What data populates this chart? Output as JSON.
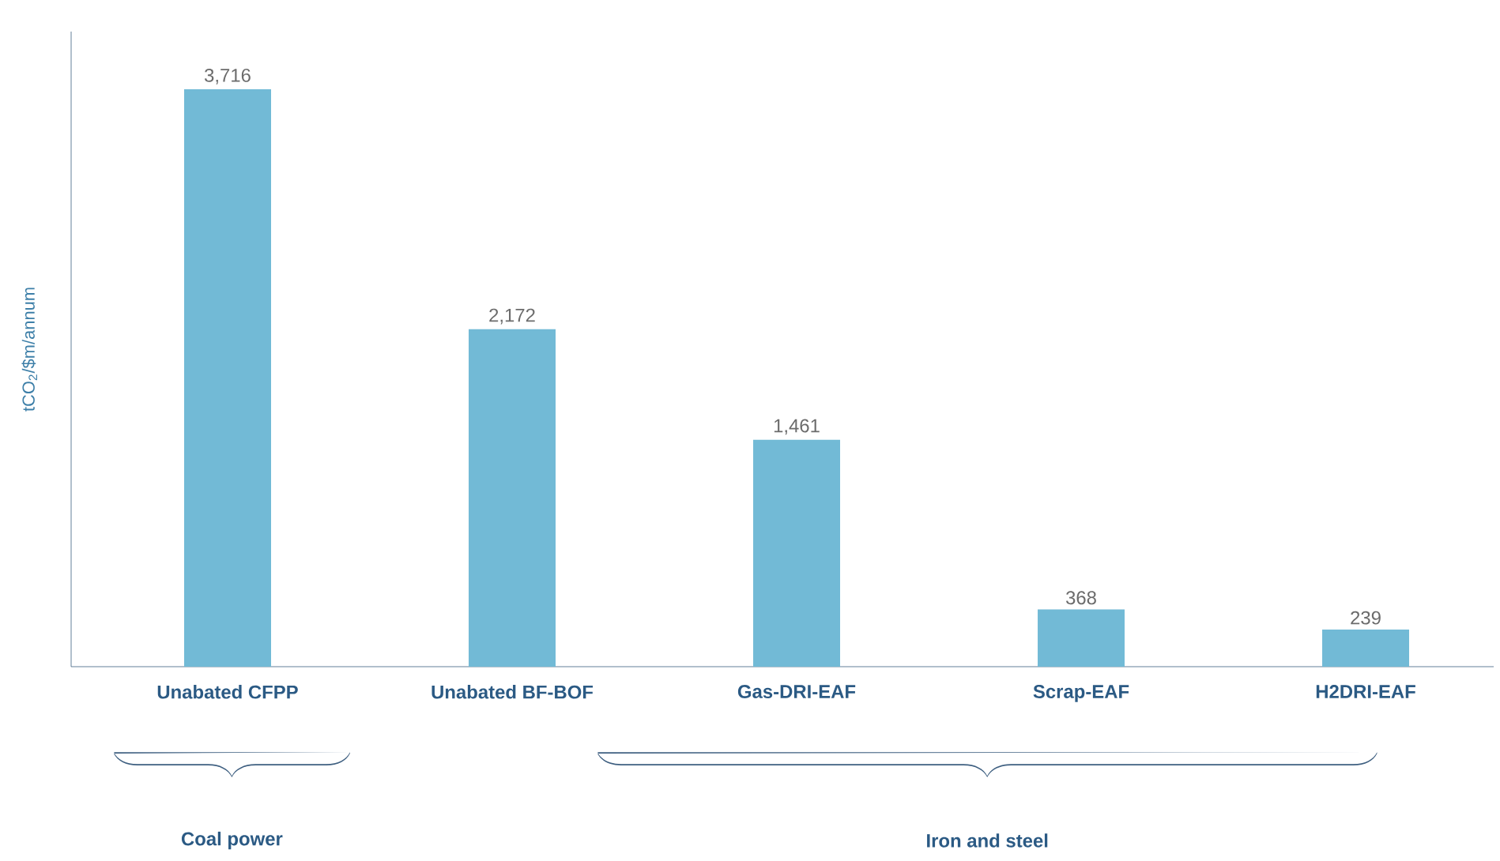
{
  "chart_data": {
    "type": "bar",
    "ylabel": "tCO$_{2}$/$m/annum",
    "categories": [
      "Unabated CFPP",
      "Unabated BF-BOF",
      "Gas-DRI-EAF",
      "Scrap-EAF",
      "H2DRI-EAF"
    ],
    "values": [
      3716,
      2172,
      1461,
      368,
      239
    ],
    "value_labels": [
      "3,716",
      "2,172",
      "1,461",
      "368",
      "239"
    ],
    "color": "#72bad6",
    "annotations": [
      "Coal power",
      "Iron and steel"
    ]
  }
}
